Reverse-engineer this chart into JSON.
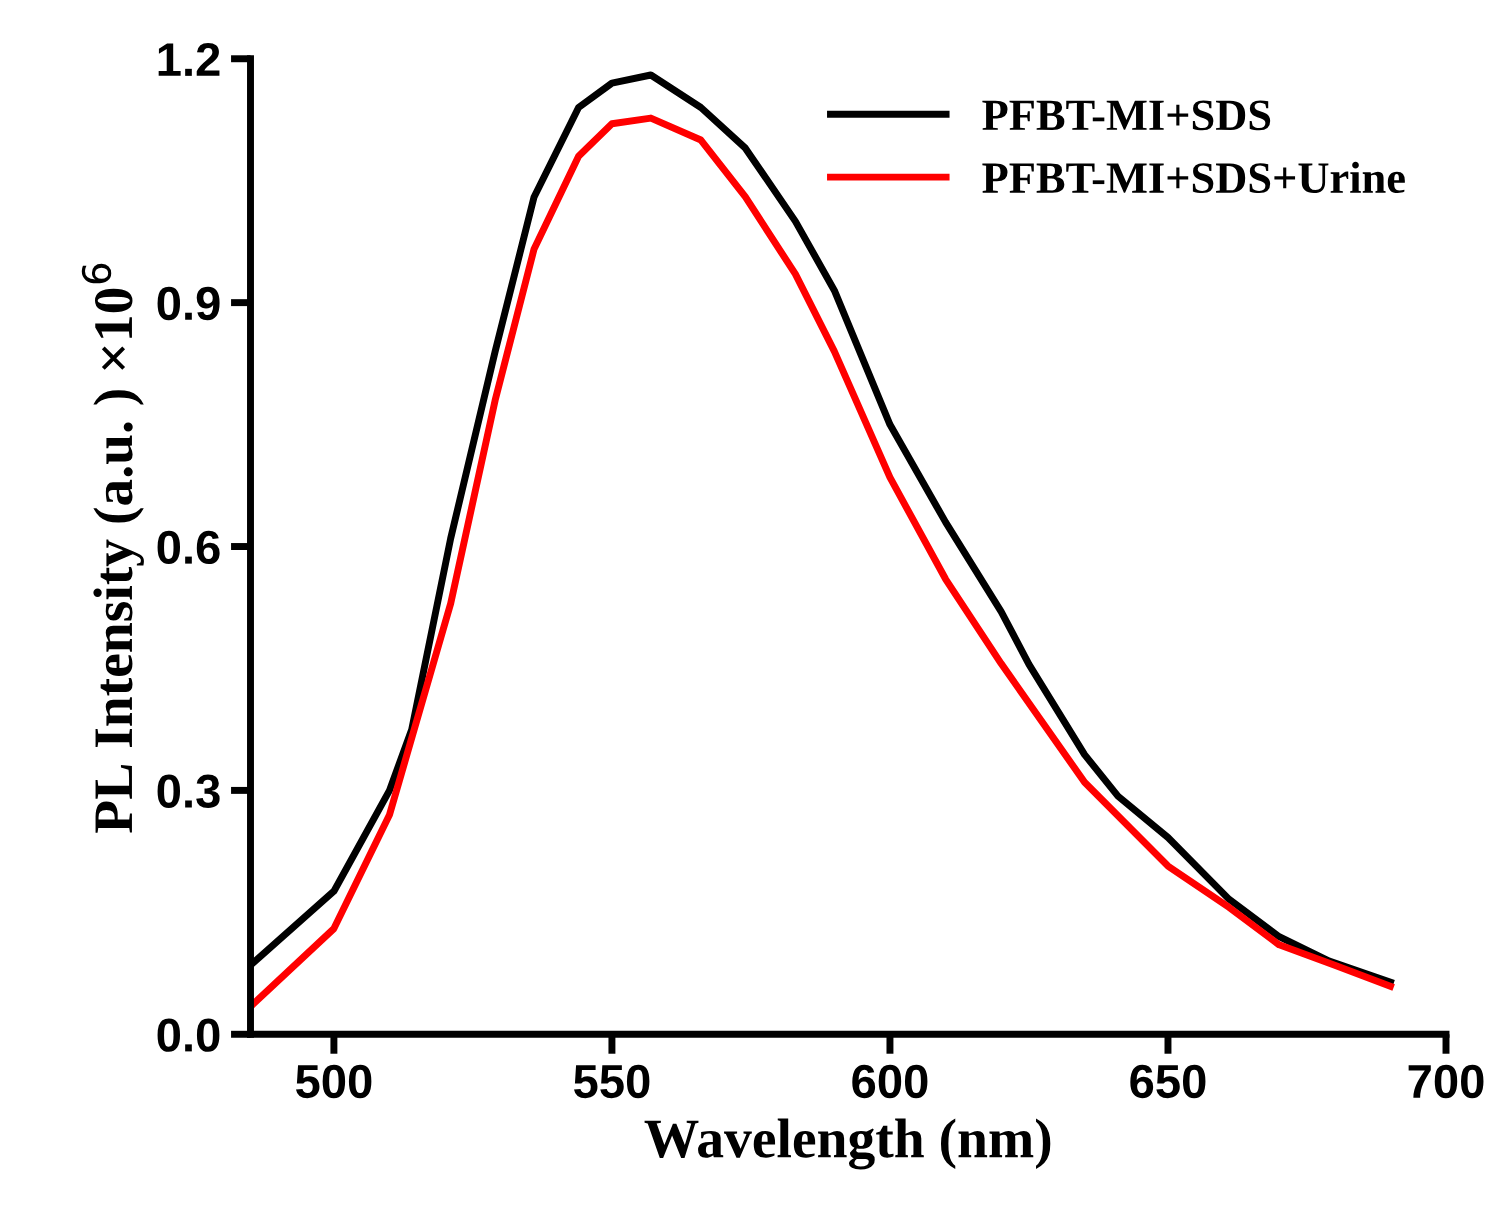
{
  "chart_data": {
    "type": "line",
    "xlabel": "Wavelength (nm)",
    "ylabel": "PL Intensity (a.u. ) ×10$^{6}$",
    "xlim": [
      485,
      700
    ],
    "ylim": [
      0,
      1.2
    ],
    "xticks": [
      500,
      550,
      600,
      650,
      700
    ],
    "yticks": [
      {
        "value": 0,
        "label": "0.0"
      },
      0.3,
      0.6,
      0.9,
      1.2
    ],
    "grid": false,
    "legend": "top right",
    "marker": "none",
    "line_style": "solid",
    "series": [
      {
        "name": "PFBT-MI+SDS",
        "color": "#000000",
        "x": [
          485,
          500,
          510,
          514,
          521,
          529,
          536,
          544,
          550,
          557,
          566,
          574,
          583,
          590,
          600,
          610,
          620,
          625,
          635,
          641,
          650,
          661,
          670,
          679,
          690
        ],
        "values": [
          0.085,
          0.176,
          0.3,
          0.375,
          0.61,
          0.84,
          1.03,
          1.14,
          1.17,
          1.18,
          1.14,
          1.09,
          1.0,
          0.915,
          0.75,
          0.63,
          0.52,
          0.455,
          0.344,
          0.293,
          0.242,
          0.166,
          0.12,
          0.09,
          0.064
        ]
      },
      {
        "name": "PFBT-MI+SDS+Urine",
        "color": "#ff0000",
        "x": [
          485,
          500,
          510,
          521,
          529,
          536,
          544,
          550,
          557,
          566,
          574,
          583,
          590,
          600,
          610,
          620,
          635,
          650,
          661,
          670,
          680,
          690
        ],
        "values": [
          0.034,
          0.13,
          0.27,
          0.53,
          0.78,
          0.966,
          1.08,
          1.12,
          1.127,
          1.1,
          1.03,
          0.935,
          0.84,
          0.685,
          0.56,
          0.456,
          0.31,
          0.207,
          0.156,
          0.11,
          0.085,
          0.059
        ]
      }
    ]
  }
}
